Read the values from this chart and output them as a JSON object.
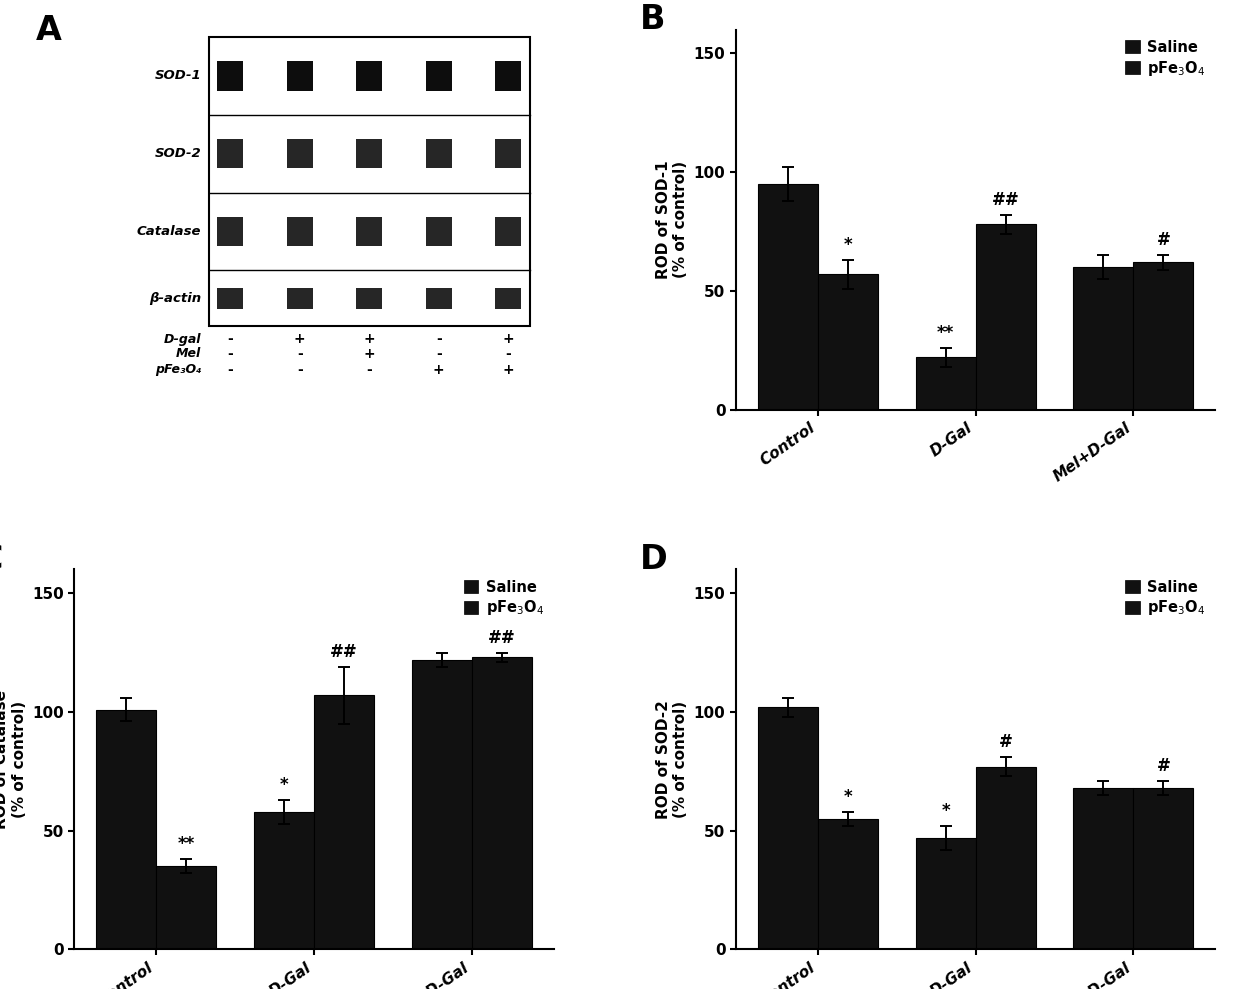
{
  "panel_B": {
    "title": "B",
    "ylabel": "ROD of SOD-1\n(% of control)",
    "categories": [
      "Control",
      "D-Gal",
      "Mel+D-Gal"
    ],
    "saline_values": [
      95,
      22,
      60
    ],
    "pfe_values": [
      57,
      78,
      62
    ],
    "saline_errors": [
      7,
      4,
      5
    ],
    "pfe_errors": [
      6,
      4,
      3
    ],
    "ylim": [
      0,
      160
    ],
    "yticks": [
      0,
      50,
      100,
      150
    ],
    "annotations_saline": [
      "",
      "**",
      ""
    ],
    "annotations_pfe": [
      "*",
      "##",
      "#"
    ]
  },
  "panel_C": {
    "title": "C",
    "ylabel": "ROD of Catalase\n(% of control)",
    "categories": [
      "Control",
      "D-Gal",
      "Mel+D-Gal"
    ],
    "saline_values": [
      101,
      58,
      122
    ],
    "pfe_values": [
      35,
      107,
      123
    ],
    "saline_errors": [
      5,
      5,
      3
    ],
    "pfe_errors": [
      3,
      12,
      2
    ],
    "ylim": [
      0,
      160
    ],
    "yticks": [
      0,
      50,
      100,
      150
    ],
    "annotations_saline": [
      "",
      "*",
      ""
    ],
    "annotations_pfe": [
      "**",
      "##",
      "##"
    ]
  },
  "panel_D": {
    "title": "D",
    "ylabel": "ROD of SOD-2\n(% of control)",
    "categories": [
      "Control",
      "D-Gal",
      "Mel+D-Gal"
    ],
    "saline_values": [
      102,
      47,
      68
    ],
    "pfe_values": [
      55,
      77,
      68
    ],
    "saline_errors": [
      4,
      5,
      3
    ],
    "pfe_errors": [
      3,
      4,
      3
    ],
    "ylim": [
      0,
      160
    ],
    "yticks": [
      0,
      50,
      100,
      150
    ],
    "annotations_saline": [
      "",
      "*",
      ""
    ],
    "annotations_pfe": [
      "*",
      "#",
      "#"
    ]
  },
  "bar_color_saline": "#111111",
  "bar_color_pfe": "#111111",
  "bar_width": 0.38,
  "font_size": 12,
  "label_fontsize": 11,
  "tick_fontsize": 11,
  "panel_label_fontsize": 24,
  "annot_fontsize": 12,
  "background_color": "#ffffff",
  "western_blot": {
    "row_labels": [
      "D-gal",
      "Mel",
      "pFe₃O₄"
    ],
    "row_symbols": [
      [
        "-",
        "+",
        "+",
        "-",
        "+"
      ],
      [
        "-",
        "-",
        "+",
        "-",
        "-"
      ],
      [
        "-",
        "-",
        "-",
        "+",
        "+"
      ]
    ],
    "band_labels": [
      "SOD-1",
      "SOD-2",
      "Catalase",
      "β-actin"
    ]
  }
}
